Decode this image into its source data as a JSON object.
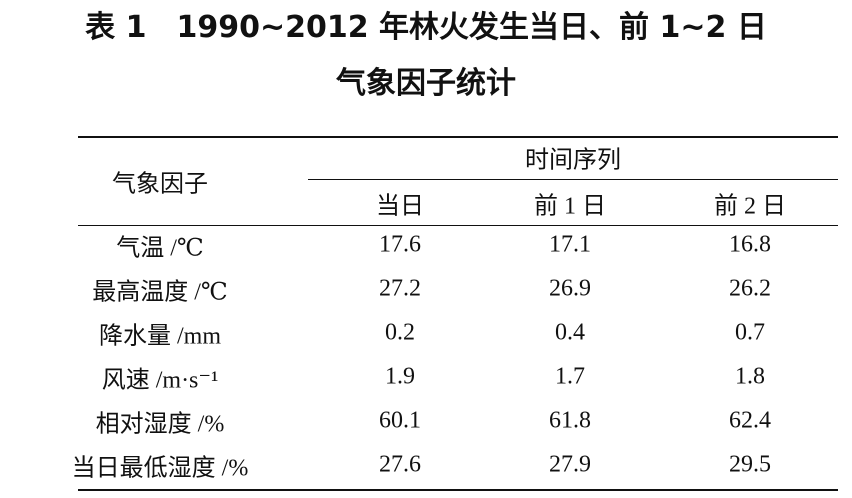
{
  "title_lines": [
    "表 1　1990~2012 年林火发生当日、前 1~2 日",
    "气象因子统计"
  ],
  "table": {
    "header": {
      "factor": "气象因子",
      "group": "时间序列",
      "columns": [
        "当日",
        "前 1 日",
        "前 2 日"
      ]
    },
    "rows": [
      [
        "气温 /℃",
        17.6,
        17.1,
        16.8
      ],
      [
        "最高温度 /℃",
        27.2,
        26.9,
        26.2
      ],
      [
        "降水量 /mm",
        0.2,
        0.4,
        0.7
      ],
      [
        "风速 /m·s⁻¹",
        1.9,
        1.7,
        1.8
      ],
      [
        "相对湿度 /%",
        60.1,
        61.8,
        62.4
      ],
      [
        "当日最低湿度 /%",
        27.6,
        27.9,
        29.5
      ]
    ]
  }
}
